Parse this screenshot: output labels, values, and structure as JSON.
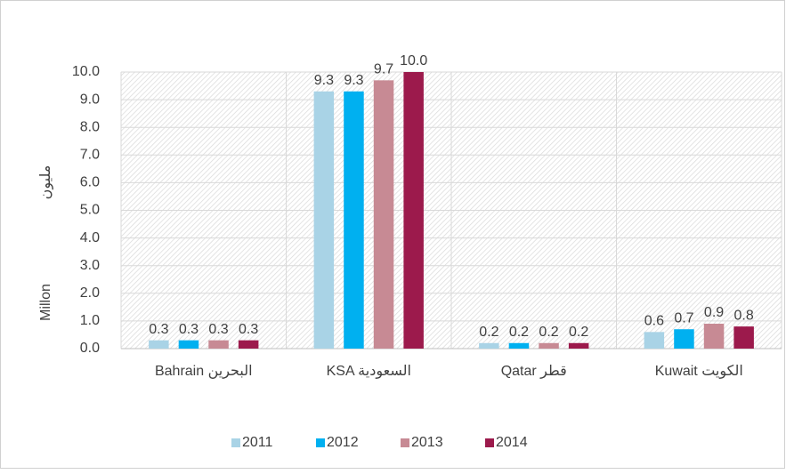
{
  "chart_data": {
    "type": "bar",
    "y_label": "Millon",
    "y_label_ar": "مليون",
    "categories": [
      "Bahrain البحرين",
      "KSA السعودية",
      "Qatar قطر",
      "Kuwait الكويت"
    ],
    "series": [
      {
        "name": "2011",
        "color": "#a9d3e6",
        "values": [
          0.3,
          9.3,
          0.2,
          0.6
        ],
        "value_labels": [
          "0.3",
          "9.3",
          "0.2",
          "0.6"
        ]
      },
      {
        "name": "2012",
        "color": "#00b0f0",
        "values": [
          0.3,
          9.3,
          0.2,
          0.7
        ],
        "value_labels": [
          "0.3",
          "9.3",
          "0.2",
          "0.7"
        ]
      },
      {
        "name": "2013",
        "color": "#c78a94",
        "values": [
          0.3,
          9.7,
          0.2,
          0.9
        ],
        "value_labels": [
          "0.3",
          "9.7",
          "0.2",
          "0.9"
        ]
      },
      {
        "name": "2014",
        "color": "#9c1a4c",
        "values": [
          0.3,
          10,
          0.2,
          0.8
        ],
        "value_labels": [
          "0.3",
          "10.0",
          "0.2",
          "0.8"
        ]
      }
    ],
    "ylim": [
      0,
      10
    ],
    "yticks": [
      {
        "value": 0,
        "label": "0.0"
      },
      {
        "value": 1,
        "label": "1.0"
      },
      {
        "value": 2,
        "label": "2.0"
      },
      {
        "value": 3,
        "label": "3.0"
      },
      {
        "value": 4,
        "label": "4.0"
      },
      {
        "value": 5,
        "label": "5.0"
      },
      {
        "value": 6,
        "label": "6.0"
      },
      {
        "value": 7,
        "label": "7.0"
      },
      {
        "value": 8,
        "label": "8.0"
      },
      {
        "value": 9,
        "label": "9.0"
      },
      {
        "value": 10,
        "label": "10.0"
      }
    ],
    "grid": true,
    "legend": "bottom"
  }
}
